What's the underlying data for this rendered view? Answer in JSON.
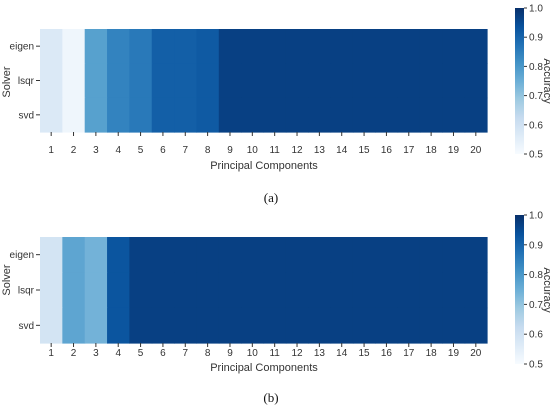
{
  "chart_data": [
    {
      "type": "heatmap",
      "panel_label": "(a)",
      "xlabel": "Principal Components",
      "ylabel": "Solver",
      "categories": [
        "1",
        "2",
        "3",
        "4",
        "5",
        "6",
        "7",
        "8",
        "9",
        "10",
        "11",
        "12",
        "13",
        "14",
        "15",
        "16",
        "17",
        "18",
        "19",
        "20"
      ],
      "rows": [
        "eigen",
        "lsqr",
        "svd"
      ],
      "values": [
        [
          0.57,
          0.52,
          0.78,
          0.84,
          0.86,
          0.91,
          0.91,
          0.92,
          0.97,
          0.97,
          0.97,
          0.97,
          0.97,
          0.97,
          0.97,
          0.97,
          0.97,
          0.97,
          0.97,
          0.97
        ],
        [
          0.57,
          0.52,
          0.78,
          0.84,
          0.86,
          0.91,
          0.91,
          0.92,
          0.97,
          0.97,
          0.97,
          0.97,
          0.97,
          0.97,
          0.97,
          0.97,
          0.97,
          0.97,
          0.97,
          0.97
        ],
        [
          0.57,
          0.52,
          0.78,
          0.84,
          0.86,
          0.91,
          0.91,
          0.92,
          0.97,
          0.97,
          0.97,
          0.97,
          0.97,
          0.97,
          0.97,
          0.97,
          0.97,
          0.97,
          0.97,
          0.97
        ]
      ],
      "colormap": "Blues",
      "colorbar": {
        "label": "Accuracy",
        "range": [
          0.5,
          1.0
        ],
        "ticks": [
          "0.5",
          "0.6",
          "0.7",
          "0.8",
          "0.9",
          "1.0"
        ]
      },
      "grid": false
    },
    {
      "type": "heatmap",
      "panel_label": "(b)",
      "xlabel": "Principal Components",
      "ylabel": "Solver",
      "categories": [
        "1",
        "2",
        "3",
        "4",
        "5",
        "6",
        "7",
        "8",
        "9",
        "10",
        "11",
        "12",
        "13",
        "14",
        "15",
        "16",
        "17",
        "18",
        "19",
        "20"
      ],
      "rows": [
        "eigen",
        "lsqr",
        "svd"
      ],
      "values": [
        [
          0.59,
          0.77,
          0.74,
          0.93,
          0.97,
          0.97,
          0.97,
          0.97,
          0.97,
          0.97,
          0.97,
          0.97,
          0.97,
          0.97,
          0.97,
          0.97,
          0.97,
          0.97,
          0.97,
          0.97
        ],
        [
          0.59,
          0.77,
          0.74,
          0.93,
          0.97,
          0.97,
          0.97,
          0.97,
          0.97,
          0.97,
          0.97,
          0.97,
          0.97,
          0.97,
          0.97,
          0.97,
          0.97,
          0.97,
          0.97,
          0.97
        ],
        [
          0.59,
          0.77,
          0.74,
          0.93,
          0.97,
          0.97,
          0.97,
          0.97,
          0.97,
          0.97,
          0.97,
          0.97,
          0.97,
          0.97,
          0.97,
          0.97,
          0.97,
          0.97,
          0.97,
          0.97
        ]
      ],
      "colormap": "Blues",
      "colorbar": {
        "label": "Accuracy",
        "range": [
          0.5,
          1.0
        ],
        "ticks": [
          "0.5",
          "0.6",
          "0.7",
          "0.8",
          "0.9",
          "1.0"
        ]
      },
      "grid": false
    }
  ]
}
